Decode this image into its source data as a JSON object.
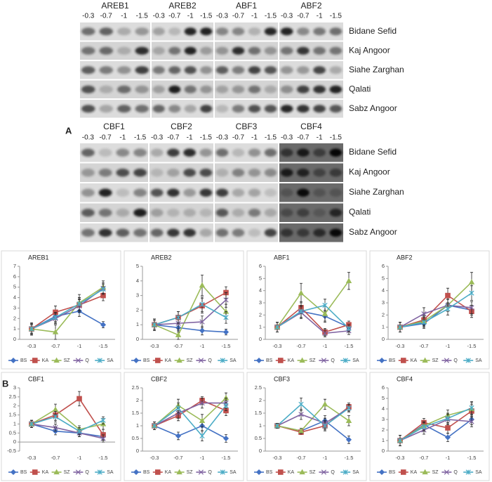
{
  "blots": {
    "label": "A",
    "top_genes": [
      "AREB1",
      "AREB2",
      "ABF1",
      "ABF2"
    ],
    "bottom_genes": [
      "CBF1",
      "CBF2",
      "CBF3",
      "CBF4"
    ],
    "levels": [
      "-0.3",
      "-0.7",
      "-1",
      "-1.5"
    ],
    "cultivars": [
      "Bidane Sefid",
      "Kaj Angoor",
      "Siahe Zarghan",
      "Qalati",
      "Sabz Angoor"
    ]
  },
  "charts_label": "B",
  "chart_data": [
    {
      "type": "line",
      "title": "AREB1",
      "categories": [
        "-0.3",
        "-0.7",
        "-1",
        "-1.5"
      ],
      "ylim": [
        0,
        7
      ],
      "yticks": [
        0,
        1,
        2,
        3,
        4,
        5,
        6,
        7
      ],
      "grid": false,
      "legend": "bottom",
      "series": [
        {
          "name": "BS",
          "color": "#4472c4",
          "marker": "diamond",
          "values": [
            1,
            2.2,
            2.7,
            1.4
          ],
          "errors": [
            0.4,
            0.5,
            0.5,
            0.3
          ]
        },
        {
          "name": "KA",
          "color": "#c0504d",
          "marker": "square",
          "values": [
            1,
            2.6,
            3.3,
            4.2
          ],
          "errors": [
            0.5,
            0.6,
            0.6,
            0.5
          ]
        },
        {
          "name": "SZ",
          "color": "#9bbb59",
          "marker": "triangle",
          "values": [
            1,
            0.7,
            3.5,
            5.0
          ],
          "errors": [
            0.6,
            0.7,
            0.8,
            0.6
          ]
        },
        {
          "name": "Q",
          "color": "#8064a2",
          "marker": "x",
          "values": [
            1,
            2.0,
            3.2,
            4.9
          ],
          "errors": [
            0.5,
            0.5,
            0.6,
            0.5
          ]
        },
        {
          "name": "SA",
          "color": "#4bacc6",
          "marker": "star",
          "values": [
            1,
            2.1,
            3.4,
            4.8
          ],
          "errors": [
            0.5,
            0.5,
            0.6,
            0.5
          ]
        }
      ]
    },
    {
      "type": "line",
      "title": "AREB2",
      "categories": [
        "-0.3",
        "-0.7",
        "-1",
        "-1.5"
      ],
      "ylim": [
        0,
        5
      ],
      "yticks": [
        0,
        1,
        2,
        3,
        4,
        5
      ],
      "grid": false,
      "legend": "bottom",
      "series": [
        {
          "name": "BS",
          "color": "#4472c4",
          "marker": "diamond",
          "values": [
            1,
            0.8,
            0.6,
            0.5
          ],
          "errors": [
            0.4,
            0.3,
            0.3,
            0.2
          ]
        },
        {
          "name": "KA",
          "color": "#c0504d",
          "marker": "square",
          "values": [
            1,
            1.5,
            2.3,
            3.2
          ],
          "errors": [
            0.4,
            0.4,
            0.5,
            0.4
          ]
        },
        {
          "name": "SZ",
          "color": "#9bbb59",
          "marker": "triangle",
          "values": [
            1,
            0.3,
            3.7,
            1.9
          ],
          "errors": [
            0.4,
            0.3,
            0.7,
            0.5
          ]
        },
        {
          "name": "Q",
          "color": "#8064a2",
          "marker": "x",
          "values": [
            1,
            1.1,
            1.2,
            2.7
          ],
          "errors": [
            0.3,
            0.4,
            0.4,
            0.5
          ]
        },
        {
          "name": "SA",
          "color": "#4bacc6",
          "marker": "star",
          "values": [
            1,
            1.5,
            2.4,
            1.5
          ],
          "errors": [
            0.4,
            0.4,
            0.5,
            0.4
          ]
        }
      ]
    },
    {
      "type": "line",
      "title": "ABF1",
      "categories": [
        "-0.3",
        "-0.7",
        "-1",
        "-1.5"
      ],
      "ylim": [
        0,
        6
      ],
      "yticks": [
        0,
        1,
        2,
        3,
        4,
        5,
        6
      ],
      "grid": false,
      "legend": "bottom",
      "series": [
        {
          "name": "BS",
          "color": "#4472c4",
          "marker": "diamond",
          "values": [
            1,
            2.3,
            1.9,
            1.0
          ],
          "errors": [
            0.4,
            0.5,
            0.5,
            0.3
          ]
        },
        {
          "name": "KA",
          "color": "#c0504d",
          "marker": "square",
          "values": [
            1,
            2.6,
            0.6,
            1.2
          ],
          "errors": [
            0.4,
            0.5,
            0.3,
            0.3
          ]
        },
        {
          "name": "SZ",
          "color": "#9bbb59",
          "marker": "triangle",
          "values": [
            1,
            3.8,
            2.1,
            4.8
          ],
          "errors": [
            0.4,
            0.8,
            0.6,
            0.7
          ]
        },
        {
          "name": "Q",
          "color": "#8064a2",
          "marker": "x",
          "values": [
            1,
            2.2,
            0.5,
            0.7
          ],
          "errors": [
            0.4,
            0.5,
            0.3,
            0.3
          ]
        },
        {
          "name": "SA",
          "color": "#4bacc6",
          "marker": "star",
          "values": [
            1,
            2.3,
            2.8,
            0.9
          ],
          "errors": [
            0.4,
            0.5,
            0.5,
            0.3
          ]
        }
      ]
    },
    {
      "type": "line",
      "title": "ABF2",
      "categories": [
        "-0.3",
        "-0.7",
        "-1",
        "-1.5"
      ],
      "ylim": [
        0,
        6
      ],
      "yticks": [
        0,
        1,
        2,
        3,
        4,
        5,
        6
      ],
      "grid": false,
      "legend": "bottom",
      "series": [
        {
          "name": "BS",
          "color": "#4472c4",
          "marker": "diamond",
          "values": [
            1,
            1.3,
            2.8,
            2.4
          ],
          "errors": [
            0.4,
            0.4,
            0.5,
            0.4
          ]
        },
        {
          "name": "KA",
          "color": "#c0504d",
          "marker": "square",
          "values": [
            1,
            1.6,
            3.6,
            2.3
          ],
          "errors": [
            0.4,
            0.4,
            0.6,
            0.5
          ]
        },
        {
          "name": "SZ",
          "color": "#9bbb59",
          "marker": "triangle",
          "values": [
            1,
            1.5,
            2.8,
            4.7
          ],
          "errors": [
            0.4,
            0.4,
            0.5,
            0.8
          ]
        },
        {
          "name": "Q",
          "color": "#8064a2",
          "marker": "x",
          "values": [
            1,
            2.1,
            2.8,
            2.6
          ],
          "errors": [
            0.4,
            0.5,
            0.5,
            0.5
          ]
        },
        {
          "name": "SA",
          "color": "#4bacc6",
          "marker": "star",
          "values": [
            1,
            1.4,
            2.5,
            3.8
          ],
          "errors": [
            0.4,
            0.4,
            0.5,
            0.6
          ]
        }
      ]
    },
    {
      "type": "line",
      "title": "CBF1",
      "categories": [
        "-0.3",
        "-0.7",
        "-1",
        "-1.5"
      ],
      "ylim": [
        -0.5,
        3
      ],
      "yticks": [
        -0.5,
        0,
        0.5,
        1,
        1.5,
        2,
        2.5,
        3
      ],
      "grid": false,
      "legend": "bottom",
      "series": [
        {
          "name": "BS",
          "color": "#4472c4",
          "marker": "diamond",
          "values": [
            1,
            0.6,
            0.5,
            0.3
          ],
          "errors": [
            0.2,
            0.2,
            0.2,
            0.2
          ]
        },
        {
          "name": "KA",
          "color": "#c0504d",
          "marker": "square",
          "values": [
            1,
            1.5,
            2.4,
            0.4
          ],
          "errors": [
            0.2,
            0.3,
            0.4,
            0.3
          ]
        },
        {
          "name": "SZ",
          "color": "#9bbb59",
          "marker": "triangle",
          "values": [
            1,
            1.8,
            0.7,
            1.0
          ],
          "errors": [
            0.2,
            0.3,
            0.2,
            0.3
          ]
        },
        {
          "name": "Q",
          "color": "#8064a2",
          "marker": "x",
          "values": [
            1,
            0.8,
            0.5,
            0.2
          ],
          "errors": [
            0.2,
            0.2,
            0.2,
            0.2
          ]
        },
        {
          "name": "SA",
          "color": "#4bacc6",
          "marker": "star",
          "values": [
            1,
            1.4,
            0.6,
            1.2
          ],
          "errors": [
            0.2,
            0.3,
            0.2,
            0.2
          ]
        }
      ]
    },
    {
      "type": "line",
      "title": "CBF2",
      "categories": [
        "-0.3",
        "-0.7",
        "-1",
        "-1.5"
      ],
      "ylim": [
        0,
        2.5
      ],
      "yticks": [
        0,
        0.5,
        1,
        1.5,
        2,
        2.5
      ],
      "grid": false,
      "legend": "bottom",
      "series": [
        {
          "name": "BS",
          "color": "#4472c4",
          "marker": "diamond",
          "values": [
            1,
            0.6,
            1.0,
            0.5
          ],
          "errors": [
            0.15,
            0.15,
            0.2,
            0.15
          ]
        },
        {
          "name": "KA",
          "color": "#c0504d",
          "marker": "square",
          "values": [
            1,
            1.4,
            2.0,
            1.6
          ],
          "errors": [
            0.15,
            0.2,
            0.15,
            0.2
          ]
        },
        {
          "name": "SZ",
          "color": "#9bbb59",
          "marker": "triangle",
          "values": [
            1,
            1.8,
            1.2,
            2.1
          ],
          "errors": [
            0.15,
            0.25,
            0.25,
            0.2
          ]
        },
        {
          "name": "Q",
          "color": "#8064a2",
          "marker": "x",
          "values": [
            1,
            1.5,
            1.9,
            1.9
          ],
          "errors": [
            0.15,
            0.2,
            0.2,
            0.2
          ]
        },
        {
          "name": "SA",
          "color": "#4bacc6",
          "marker": "star",
          "values": [
            1,
            1.7,
            0.6,
            1.8
          ],
          "errors": [
            0.15,
            0.2,
            0.2,
            0.2
          ]
        }
      ]
    },
    {
      "type": "line",
      "title": "CBF3",
      "categories": [
        "-0.3",
        "-0.7",
        "-1",
        "-1.5"
      ],
      "ylim": [
        0,
        2.5
      ],
      "yticks": [
        0,
        0.5,
        1,
        1.5,
        2,
        2.5
      ],
      "grid": false,
      "legend": "bottom",
      "series": [
        {
          "name": "BS",
          "color": "#4472c4",
          "marker": "diamond",
          "values": [
            1,
            0.8,
            1.2,
            0.45
          ],
          "errors": [
            0.1,
            0.1,
            0.2,
            0.15
          ]
        },
        {
          "name": "KA",
          "color": "#c0504d",
          "marker": "square",
          "values": [
            1,
            0.75,
            1.0,
            1.75
          ],
          "errors": [
            0.1,
            0.1,
            0.15,
            0.15
          ]
        },
        {
          "name": "SZ",
          "color": "#9bbb59",
          "marker": "triangle",
          "values": [
            1,
            0.8,
            1.85,
            1.2
          ],
          "errors": [
            0.1,
            0.1,
            0.2,
            0.2
          ]
        },
        {
          "name": "Q",
          "color": "#8064a2",
          "marker": "x",
          "values": [
            1,
            1.45,
            1.1,
            1.7
          ],
          "errors": [
            0.1,
            0.2,
            0.2,
            0.15
          ]
        },
        {
          "name": "SA",
          "color": "#4bacc6",
          "marker": "star",
          "values": [
            1,
            1.85,
            1.0,
            1.7
          ],
          "errors": [
            0.1,
            0.25,
            0.2,
            0.15
          ]
        }
      ]
    },
    {
      "type": "line",
      "title": "CBF4",
      "categories": [
        "-0.3",
        "-0.7",
        "-1",
        "-1.5"
      ],
      "ylim": [
        0,
        6
      ],
      "yticks": [
        0,
        1,
        2,
        3,
        4,
        5,
        6
      ],
      "grid": false,
      "legend": "bottom",
      "series": [
        {
          "name": "BS",
          "color": "#4472c4",
          "marker": "diamond",
          "values": [
            1,
            2.5,
            1.3,
            3.0
          ],
          "errors": [
            0.5,
            0.4,
            0.4,
            0.5
          ]
        },
        {
          "name": "KA",
          "color": "#c0504d",
          "marker": "square",
          "values": [
            1,
            2.7,
            2.2,
            3.8
          ],
          "errors": [
            0.5,
            0.4,
            0.5,
            0.6
          ]
        },
        {
          "name": "SZ",
          "color": "#9bbb59",
          "marker": "triangle",
          "values": [
            1,
            2.4,
            3.4,
            4.0
          ],
          "errors": [
            0.5,
            0.4,
            0.5,
            0.6
          ]
        },
        {
          "name": "Q",
          "color": "#8064a2",
          "marker": "x",
          "values": [
            1,
            2.0,
            3.0,
            2.8
          ],
          "errors": [
            0.5,
            0.4,
            0.5,
            0.5
          ]
        },
        {
          "name": "SA",
          "color": "#4bacc6",
          "marker": "star",
          "values": [
            1,
            2.3,
            3.1,
            4.1
          ],
          "errors": [
            0.5,
            0.4,
            0.5,
            0.6
          ]
        }
      ]
    }
  ]
}
